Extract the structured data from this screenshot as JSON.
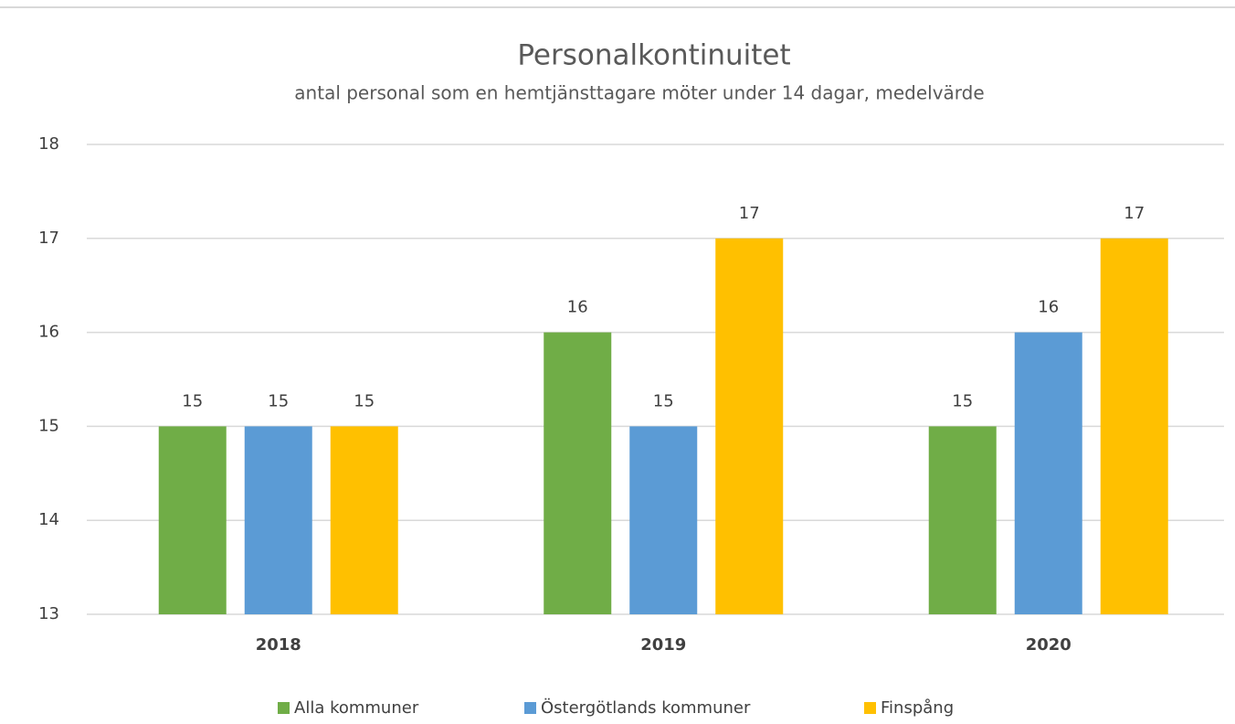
{
  "chart_data": {
    "type": "bar",
    "title": "Personalkontinuitet",
    "subtitle": "antal personal som en hemtjänsttagare möter under 14 dagar, medelvärde",
    "categories": [
      "2018",
      "2019",
      "2020"
    ],
    "series": [
      {
        "name": "Alla kommuner",
        "color": "#70ad47",
        "values": [
          15,
          16,
          15
        ]
      },
      {
        "name": "Östergötlands kommuner",
        "color": "#5b9bd5",
        "values": [
          15,
          15,
          16
        ]
      },
      {
        "name": "Finspång",
        "color": "#ffc000",
        "values": [
          15,
          17,
          17
        ]
      }
    ],
    "ylim": [
      13,
      18
    ],
    "yticks": [
      13,
      14,
      15,
      16,
      17,
      18
    ],
    "grid": true,
    "legend": "bottom"
  }
}
